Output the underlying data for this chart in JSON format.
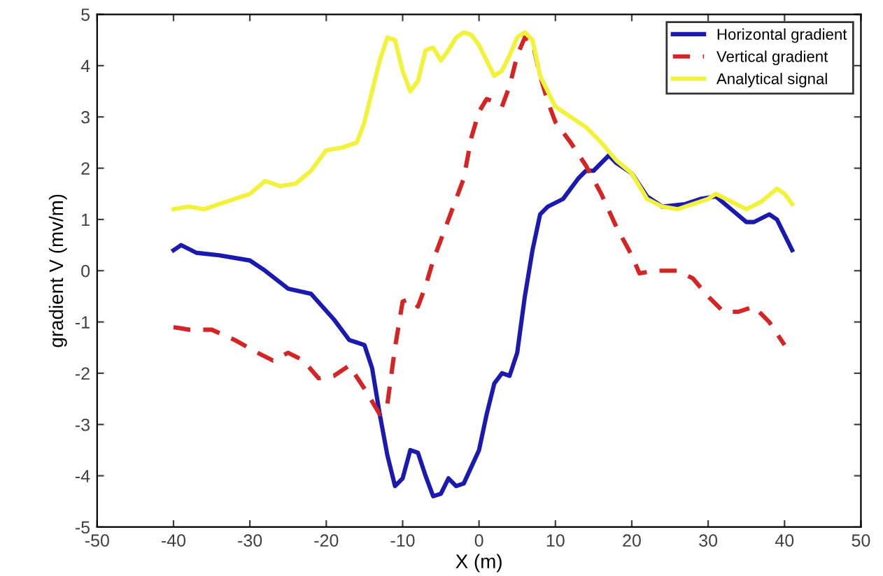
{
  "chart_data": {
    "type": "line",
    "xlabel": "X (m)",
    "ylabel": "gradient V (mv/m)",
    "xlim": [
      -50,
      50
    ],
    "ylim": [
      -5,
      5
    ],
    "xticks": [
      -50,
      -40,
      -30,
      -20,
      -10,
      0,
      10,
      20,
      30,
      40,
      50
    ],
    "yticks": [
      -5,
      -4,
      -3,
      -2,
      -1,
      0,
      1,
      2,
      3,
      4,
      5
    ],
    "grid": false,
    "legend": "top right",
    "marker": "none",
    "series": [
      {
        "name": "Horizontal gradient",
        "color": "#1a1ab0",
        "line_style": "solid",
        "x": [
          -40,
          -39,
          -37,
          -34,
          -30,
          -28,
          -25,
          -22,
          -19,
          -17,
          -15,
          -14,
          -13,
          -12,
          -11,
          -10,
          -9,
          -8,
          -7,
          -6,
          -5,
          -4,
          -3,
          -2,
          0,
          1,
          2,
          3,
          4,
          5,
          6,
          7,
          8,
          9,
          11,
          13,
          14,
          15,
          17,
          18,
          20,
          22,
          24,
          27,
          29,
          31,
          33,
          35,
          36,
          38,
          39,
          41
        ],
        "values": [
          0.4,
          0.5,
          0.35,
          0.3,
          0.2,
          0.0,
          -0.35,
          -0.45,
          -0.95,
          -1.35,
          -1.45,
          -1.9,
          -2.8,
          -3.6,
          -4.2,
          -4.05,
          -3.5,
          -3.55,
          -4.0,
          -4.4,
          -4.35,
          -4.05,
          -4.2,
          -4.15,
          -3.5,
          -2.8,
          -2.2,
          -2.0,
          -2.05,
          -1.6,
          -0.5,
          0.4,
          1.1,
          1.25,
          1.4,
          1.8,
          1.95,
          1.95,
          2.25,
          2.1,
          1.9,
          1.45,
          1.25,
          1.3,
          1.4,
          1.45,
          1.2,
          0.95,
          0.95,
          1.1,
          1.0,
          0.4
        ]
      },
      {
        "name": "Vertical gradient",
        "color": "#d42424",
        "line_style": "dashed",
        "x": [
          -40,
          -38,
          -35,
          -32,
          -29,
          -27,
          -25,
          -23,
          -21,
          -19,
          -17,
          -15,
          -13,
          -12,
          -11,
          -10,
          -9,
          -8,
          -7,
          -6,
          -5,
          -4,
          -2,
          -1,
          0,
          1,
          2,
          3,
          4,
          5,
          6,
          7,
          8,
          9,
          10,
          12,
          14,
          16,
          18,
          20,
          21,
          23,
          26,
          28,
          30,
          32,
          34,
          36,
          38,
          40
        ],
        "values": [
          -1.1,
          -1.15,
          -1.15,
          -1.35,
          -1.6,
          -1.75,
          -1.6,
          -1.75,
          -2.1,
          -2.05,
          -1.85,
          -2.3,
          -2.8,
          -2.6,
          -1.5,
          -0.6,
          -0.55,
          -0.7,
          -0.3,
          0.2,
          0.6,
          1.0,
          1.8,
          2.6,
          3.1,
          3.35,
          3.3,
          3.2,
          3.6,
          4.2,
          4.55,
          4.45,
          3.8,
          3.3,
          2.9,
          2.5,
          2.05,
          1.5,
          0.85,
          0.3,
          -0.05,
          0.0,
          0.0,
          -0.15,
          -0.5,
          -0.8,
          -0.8,
          -0.7,
          -1.0,
          -1.45
        ]
      },
      {
        "name": "Analytical signal",
        "color": "#f2f23a",
        "line_style": "solid",
        "x": [
          -40,
          -38,
          -36,
          -34,
          -32,
          -30,
          -28,
          -26,
          -24,
          -22,
          -20,
          -18,
          -16,
          -15,
          -14,
          -13,
          -12,
          -11,
          -10,
          -9,
          -8,
          -7,
          -6,
          -5,
          -4,
          -3,
          -2,
          -1,
          0,
          1,
          2,
          3,
          4,
          5,
          6,
          7,
          8,
          10,
          12,
          14,
          16,
          18,
          20,
          22,
          24,
          26,
          28,
          30,
          31,
          33,
          35,
          37,
          39,
          40,
          41
        ],
        "values": [
          1.2,
          1.25,
          1.2,
          1.3,
          1.4,
          1.5,
          1.75,
          1.65,
          1.7,
          1.95,
          2.35,
          2.4,
          2.5,
          2.9,
          3.5,
          4.1,
          4.55,
          4.5,
          3.9,
          3.5,
          3.7,
          4.3,
          4.35,
          4.1,
          4.3,
          4.55,
          4.65,
          4.6,
          4.4,
          4.1,
          3.8,
          3.9,
          4.2,
          4.55,
          4.65,
          4.5,
          3.8,
          3.2,
          3.0,
          2.8,
          2.5,
          2.15,
          1.9,
          1.4,
          1.25,
          1.2,
          1.3,
          1.4,
          1.5,
          1.35,
          1.2,
          1.35,
          1.6,
          1.5,
          1.3
        ]
      }
    ]
  }
}
